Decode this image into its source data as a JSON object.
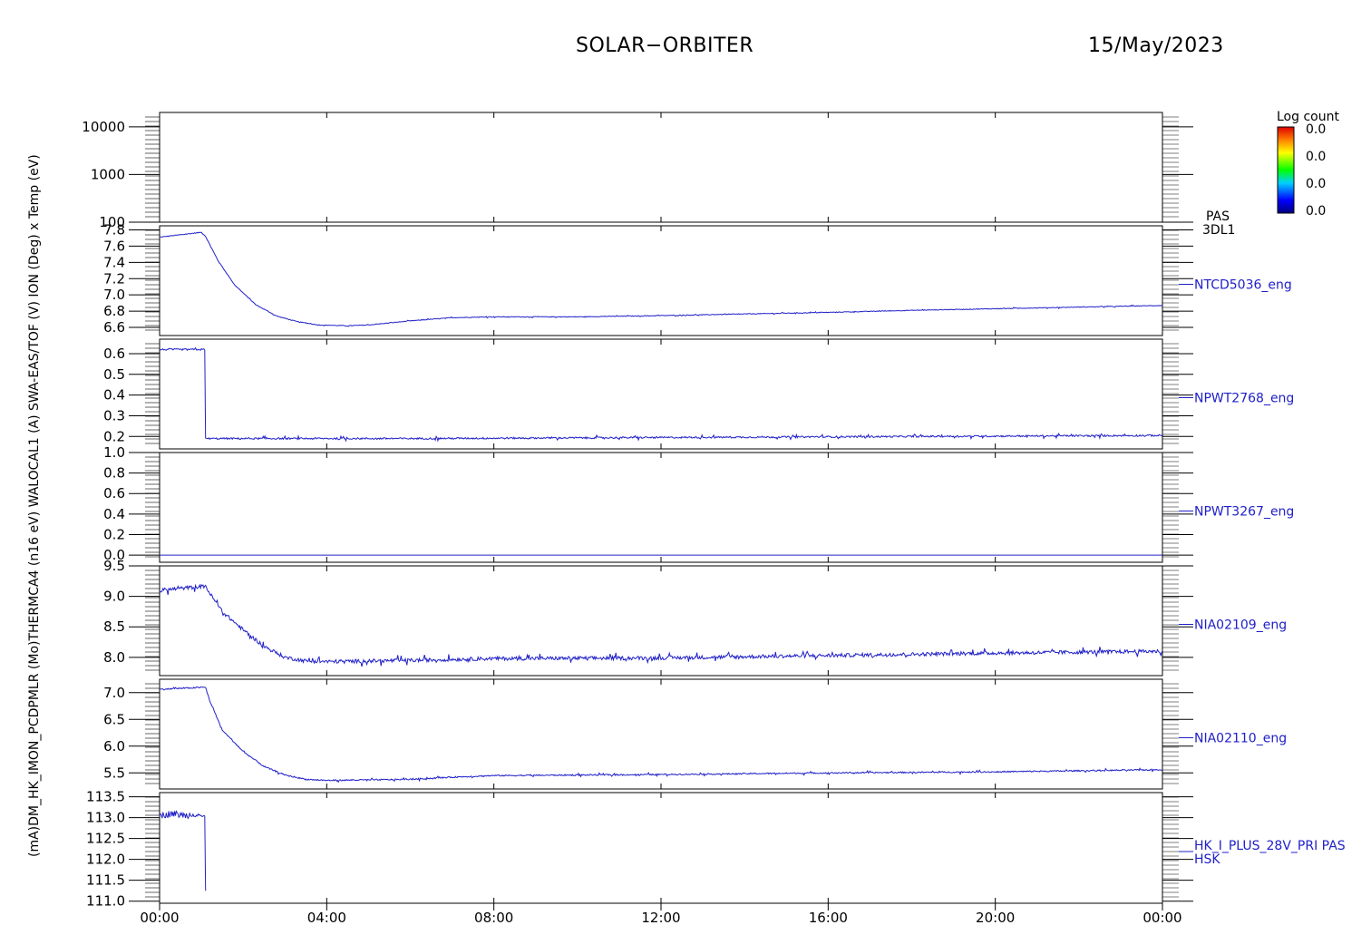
{
  "header": {
    "mission": "SOLAR−ORBITER",
    "date": "15/May/2023"
  },
  "colorbar": {
    "title": "Log count",
    "ticks": [
      "0.0",
      "0.0",
      "0.0",
      "0.0"
    ]
  },
  "left_axis_title": "(mA)DM_HK_IMON_PCDPMLR (Mo)THERMCA4 (n16 eV) WALOCAL1 (A) SWA-EAS/TOF (V) ION (Deg) x Temp (eV)",
  "x_axis": {
    "ticks": [
      "00:00",
      "04:00",
      "08:00",
      "12:00",
      "16:00",
      "20:00",
      "00:00"
    ],
    "hours": [
      0,
      4,
      8,
      12,
      16,
      20,
      24
    ]
  },
  "chart_data": [
    {
      "type": "heatmap",
      "name": "PAS 3DL1",
      "label_lines": [
        "PAS",
        "3DL1"
      ],
      "yscale": "log",
      "ylim": [
        100,
        20000
      ],
      "yticks": [
        100,
        1000,
        10000
      ],
      "ytick_labels": [
        "100",
        "1000",
        "10000"
      ],
      "values": []
    },
    {
      "type": "line",
      "name": "NTCD5036_eng",
      "ylim": [
        6.5,
        7.85
      ],
      "yticks": [
        6.6,
        6.8,
        7.0,
        7.2,
        7.4,
        7.6,
        7.8
      ],
      "ytick_labels": [
        "6.6",
        "6.8",
        "7.0",
        "7.2",
        "7.4",
        "7.6",
        "7.8"
      ],
      "noise": 0.004,
      "x": [
        0,
        0.5,
        1.0,
        1.1,
        1.4,
        1.8,
        2.3,
        2.8,
        3.3,
        3.8,
        4.5,
        5.0,
        6.0,
        7.0,
        8.0,
        10.0,
        12.0,
        14.0,
        16.0,
        18.0,
        20.0,
        22.0,
        24.0
      ],
      "y": [
        7.71,
        7.74,
        7.77,
        7.72,
        7.42,
        7.12,
        6.88,
        6.74,
        6.67,
        6.63,
        6.62,
        6.63,
        6.68,
        6.72,
        6.73,
        6.73,
        6.745,
        6.765,
        6.785,
        6.81,
        6.83,
        6.85,
        6.87
      ]
    },
    {
      "type": "line",
      "name": "NPWT2768_eng",
      "ylim": [
        0.14,
        0.67
      ],
      "yticks": [
        0.2,
        0.3,
        0.4,
        0.5,
        0.6
      ],
      "ytick_labels": [
        "0.2",
        "0.3",
        "0.4",
        "0.5",
        "0.6"
      ],
      "noise": 0.004,
      "x": [
        0,
        1.09,
        1.1,
        6.0,
        12.0,
        18.0,
        24.0
      ],
      "y": [
        0.62,
        0.62,
        0.19,
        0.19,
        0.195,
        0.2,
        0.205
      ]
    },
    {
      "type": "line",
      "name": "NPWT3267_eng",
      "ylim": [
        -0.07,
        1.0
      ],
      "yticks": [
        0.0,
        0.2,
        0.4,
        0.6,
        0.8,
        1.0
      ],
      "ytick_labels": [
        "0.0",
        "0.2",
        "0.4",
        "0.6",
        "0.8",
        "1.0"
      ],
      "noise": 0,
      "x": [
        0,
        24
      ],
      "y": [
        0.0,
        0.0
      ]
    },
    {
      "type": "line",
      "name": "NIA02109_eng",
      "ylim": [
        7.7,
        9.5
      ],
      "yticks": [
        8.0,
        8.5,
        9.0,
        9.5
      ],
      "ytick_labels": [
        "8.0",
        "8.5",
        "9.0",
        "9.5"
      ],
      "noise": 0.03,
      "x": [
        0,
        0.5,
        1.1,
        1.2,
        1.5,
        2.0,
        2.5,
        3.0,
        3.5,
        4.0,
        6.0,
        8.0,
        12.0,
        16.0,
        20.0,
        24.0
      ],
      "y": [
        9.1,
        9.13,
        9.17,
        9.05,
        8.75,
        8.45,
        8.18,
        8.0,
        7.94,
        7.93,
        7.95,
        7.98,
        7.99,
        8.03,
        8.07,
        8.1
      ]
    },
    {
      "type": "line",
      "name": "NIA02110_eng",
      "ylim": [
        5.2,
        7.25
      ],
      "yticks": [
        5.5,
        6.0,
        6.5,
        7.0
      ],
      "ytick_labels": [
        "5.5",
        "6.0",
        "6.5",
        "7.0"
      ],
      "noise": 0.012,
      "x": [
        0,
        0.5,
        1.1,
        1.2,
        1.5,
        2.0,
        2.5,
        3.0,
        3.5,
        4.0,
        6.0,
        7.0,
        8.0,
        12.0,
        16.0,
        20.0,
        24.0
      ],
      "y": [
        7.06,
        7.08,
        7.1,
        6.85,
        6.3,
        5.9,
        5.62,
        5.46,
        5.38,
        5.36,
        5.38,
        5.42,
        5.45,
        5.47,
        5.5,
        5.52,
        5.56
      ]
    },
    {
      "type": "line",
      "name": "HK_I_PLUS_28V_PRI PAS HSK",
      "label_lines": [
        "HK_I_PLUS_28V_PRI PAS",
        "HSK"
      ],
      "ylim": [
        110.95,
        113.6
      ],
      "yticks": [
        111.0,
        111.5,
        112.0,
        112.5,
        113.0,
        113.5
      ],
      "ytick_labels": [
        "111.0",
        "111.5",
        "112.0",
        "112.5",
        "113.0",
        "113.5"
      ],
      "noise": 0.08,
      "x": [
        0,
        0.3,
        0.6,
        0.9,
        1.08,
        1.09,
        1.1
      ],
      "y": [
        113.05,
        113.1,
        113.05,
        113.1,
        113.0,
        111.2,
        111.2
      ]
    }
  ]
}
